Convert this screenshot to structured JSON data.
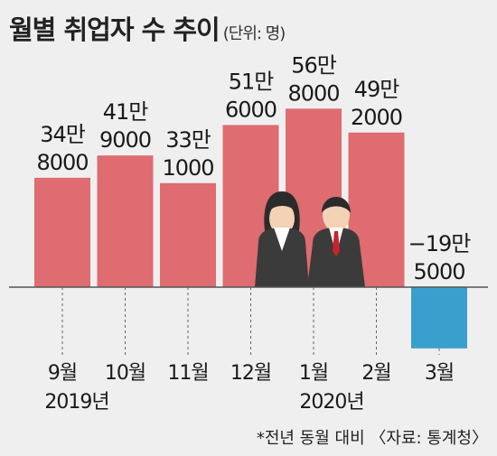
{
  "title": "월별 취업자 수 추이",
  "unit": "(단위: 명)",
  "footnote": "*전년 동월 대비 〈자료: 통계청〉",
  "colors": {
    "positive": "#de6c70",
    "negative": "#3a9fcc",
    "background": "#f0efef"
  },
  "chart_data": {
    "type": "bar",
    "categories": [
      "9월",
      "10월",
      "11월",
      "12월",
      "1월",
      "2월",
      "3월"
    ],
    "year_labels": [
      "2019년",
      "2020년"
    ],
    "values": [
      348000,
      419000,
      331000,
      516000,
      568000,
      492000,
      -195000
    ],
    "value_labels": [
      [
        "34만",
        "8000"
      ],
      [
        "41만",
        "9000"
      ],
      [
        "33만",
        "1000"
      ],
      [
        "51만",
        "6000"
      ],
      [
        "56만",
        "8000"
      ],
      [
        "49만",
        "2000"
      ],
      [
        "−19만",
        "5000"
      ]
    ],
    "grid": false,
    "legend": "none"
  }
}
